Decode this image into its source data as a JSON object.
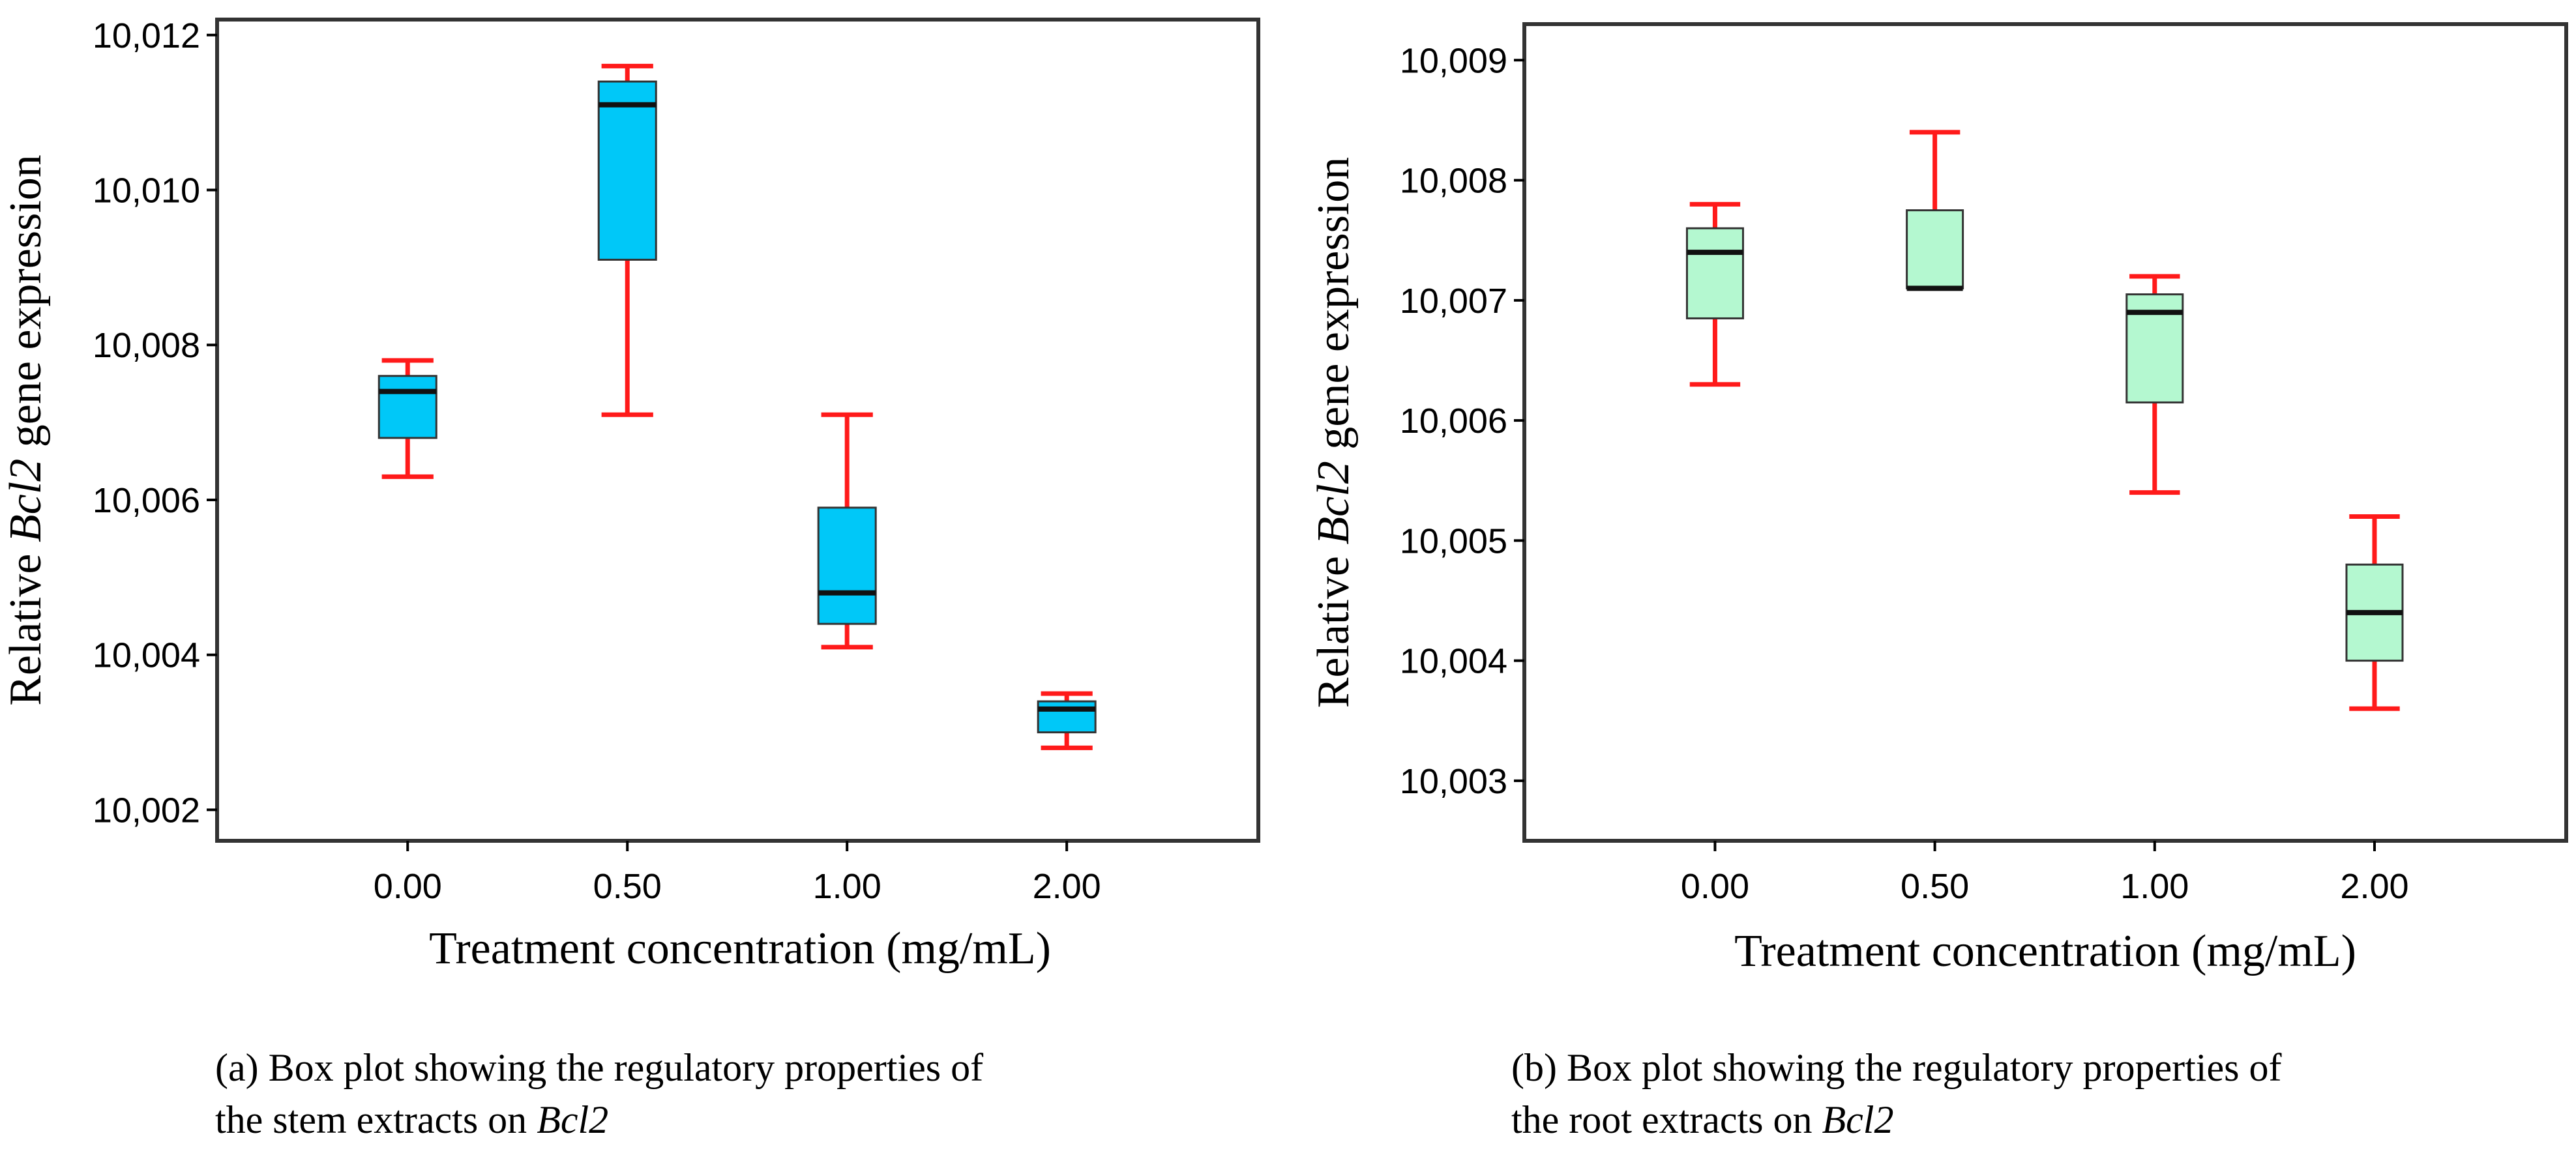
{
  "chart_data": [
    {
      "type": "box",
      "panel_label": "(a)",
      "xlabel": "Treatment concentration (mg/mL)",
      "ylabel_prefix": "Relative ",
      "ylabel_gene": "Bcl2",
      "ylabel_suffix": " gene expression",
      "ylim": [
        10.0016,
        10.0122
      ],
      "yticks": [
        10.002,
        10.004,
        10.006,
        10.008,
        10.01,
        10.012
      ],
      "ytick_labels": [
        "10,002",
        "10,004",
        "10,006",
        "10,008",
        "10,010",
        "10,012"
      ],
      "categories": [
        "0.00",
        "0.50",
        "1.00",
        "2.00"
      ],
      "series": [
        {
          "category": "0.00",
          "whisker_low": 10.0063,
          "q1": 10.0068,
          "median": 10.0074,
          "q3": 10.0076,
          "whisker_high": 10.0078
        },
        {
          "category": "0.50",
          "whisker_low": 10.0071,
          "q1": 10.0091,
          "median": 10.0111,
          "q3": 10.0114,
          "whisker_high": 10.0116
        },
        {
          "category": "1.00",
          "whisker_low": 10.0041,
          "q1": 10.0044,
          "median": 10.0048,
          "q3": 10.0059,
          "whisker_high": 10.0071
        },
        {
          "category": "2.00",
          "whisker_low": 10.0028,
          "q1": 10.003,
          "median": 10.0033,
          "q3": 10.0034,
          "whisker_high": 10.0035
        }
      ],
      "caption_line1": "(a) Box plot showing the regulatory properties of",
      "caption_line2_prefix": "the stem extracts on ",
      "caption_gene": "Bcl2"
    },
    {
      "type": "box",
      "panel_label": "(b)",
      "xlabel": "Treatment concentration (mg/mL)",
      "ylabel_prefix": "Relative ",
      "ylabel_gene": "Bcl2",
      "ylabel_suffix": " gene expression",
      "ylim": [
        10.0025,
        10.0093
      ],
      "yticks": [
        10.003,
        10.004,
        10.005,
        10.006,
        10.007,
        10.008,
        10.009
      ],
      "ytick_labels": [
        "10,003",
        "10,004",
        "10,005",
        "10,006",
        "10,007",
        "10,008",
        "10,009"
      ],
      "categories": [
        "0.00",
        "0.50",
        "1.00",
        "2.00"
      ],
      "series": [
        {
          "category": "0.00",
          "whisker_low": 10.0063,
          "q1": 10.00685,
          "median": 10.0074,
          "q3": 10.0076,
          "whisker_high": 10.0078
        },
        {
          "category": "0.50",
          "whisker_low": 10.0071,
          "q1": 10.0071,
          "median": 10.0071,
          "q3": 10.00775,
          "whisker_high": 10.0084
        },
        {
          "category": "1.00",
          "whisker_low": 10.0054,
          "q1": 10.00615,
          "median": 10.0069,
          "q3": 10.00705,
          "whisker_high": 10.0072
        },
        {
          "category": "2.00",
          "whisker_low": 10.0036,
          "q1": 10.004,
          "median": 10.0044,
          "q3": 10.0048,
          "whisker_high": 10.0052
        }
      ],
      "caption_line1": "(b) Box plot showing  the regulatory properties of",
      "caption_line2_prefix": "the root extracts on ",
      "caption_gene": "Bcl2"
    }
  ],
  "colors": {
    "box_fill_a": "#00c8f8",
    "box_fill_b": "#b4f8d0",
    "box_stroke": "#333333",
    "whisker": "#ff1a1a",
    "median": "#111111",
    "frame": "#333333",
    "axis": "#000000"
  }
}
